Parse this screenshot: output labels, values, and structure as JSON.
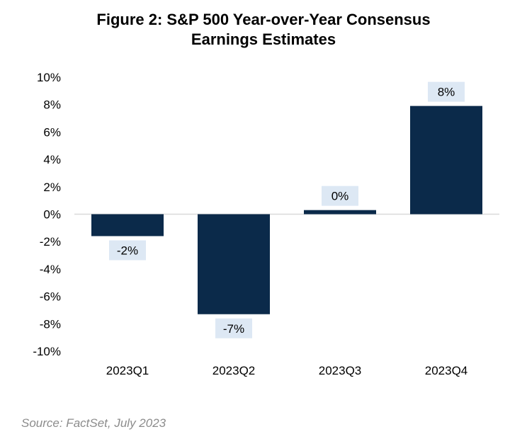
{
  "chart_data": {
    "type": "bar",
    "title_line1": "Figure 2: S&P 500 Year-over-Year Consensus",
    "title_line2": "Earnings Estimates",
    "categories": [
      "2023Q1",
      "2023Q2",
      "2023Q3",
      "2023Q4"
    ],
    "values": [
      -1.6,
      -7.3,
      0.3,
      7.9
    ],
    "data_labels": [
      "-2%",
      "-7%",
      "0%",
      "8%"
    ],
    "ylim": [
      -10,
      10
    ],
    "yticks": [
      10,
      8,
      6,
      4,
      2,
      0,
      -2,
      -4,
      -6,
      -8,
      -10
    ],
    "ytick_labels": [
      "10%",
      "8%",
      "6%",
      "4%",
      "2%",
      "0%",
      "-2%",
      "-4%",
      "-6%",
      "-8%",
      "-10%"
    ],
    "grid": false,
    "bar_color": "#0b2a4a",
    "label_bg_color": "#dde8f4"
  },
  "source": "Source: FactSet, July 2023"
}
